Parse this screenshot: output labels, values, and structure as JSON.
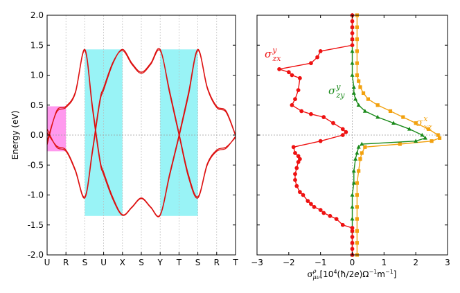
{
  "chart_data": [
    {
      "type": "line",
      "title": "",
      "ylabel": "Energy (eV)",
      "xlabel": "",
      "ylim": [
        -2.0,
        2.0
      ],
      "yticks": [
        "-2.0",
        "-1.5",
        "-1.0",
        "-0.5",
        "0.0",
        "0.5",
        "1.0",
        "1.5",
        "2.0"
      ],
      "kpath": [
        "U",
        "R",
        "S",
        "U",
        "X",
        "S",
        "Y",
        "T",
        "S",
        "R",
        "T"
      ],
      "fermi_level": 0.0,
      "line_color": "#dd1111",
      "highlight_colors": {
        "magenta": "#ff99ee",
        "cyan": "#99f3f6"
      },
      "highlights": [
        {
          "color": "magenta",
          "k_from": 0,
          "k_to": 1,
          "e_from": -0.27,
          "e_to": 0.48
        },
        {
          "color": "cyan",
          "k_from": 2,
          "k_to": 4,
          "e_from": -1.35,
          "e_to": 1.43
        },
        {
          "color": "cyan",
          "k_from": 6,
          "k_to": 8,
          "e_from": -1.35,
          "e_to": 1.43
        }
      ],
      "bands": [
        {
          "name": "upper-1",
          "points": [
            [
              0,
              -0.16
            ],
            [
              0.5,
              0.4
            ],
            [
              1,
              0.48
            ],
            [
              1.5,
              0.72
            ],
            [
              2,
              1.43
            ],
            [
              2.4,
              0.5
            ],
            [
              2.8,
              -0.4
            ],
            [
              3,
              -0.62
            ],
            [
              3.5,
              -1.05
            ],
            [
              4,
              -1.33
            ],
            [
              4.5,
              -1.2
            ],
            [
              5,
              -1.05
            ],
            [
              5.5,
              -1.2
            ],
            [
              6,
              -1.33
            ],
            [
              6.5,
              -0.65
            ],
            [
              7,
              0.0
            ],
            [
              7.5,
              0.7
            ],
            [
              8,
              1.43
            ],
            [
              8.5,
              0.8
            ],
            [
              9,
              0.48
            ],
            [
              9.5,
              0.4
            ],
            [
              10,
              0.0
            ]
          ]
        },
        {
          "name": "upper-2",
          "points": [
            [
              0,
              -0.1
            ],
            [
              0.5,
              0.38
            ],
            [
              1,
              0.46
            ],
            [
              1.5,
              0.7
            ],
            [
              2,
              1.41
            ],
            [
              2.4,
              0.45
            ],
            [
              2.8,
              -0.44
            ],
            [
              3,
              -0.66
            ],
            [
              3.5,
              -1.08
            ],
            [
              4,
              -1.34
            ],
            [
              4.5,
              -1.21
            ],
            [
              5,
              -1.06
            ],
            [
              5.5,
              -1.21
            ],
            [
              6,
              -1.34
            ],
            [
              6.5,
              -0.68
            ],
            [
              7,
              -0.03
            ],
            [
              7.5,
              0.66
            ],
            [
              8,
              1.41
            ],
            [
              8.5,
              0.78
            ],
            [
              9,
              0.46
            ],
            [
              9.5,
              0.38
            ],
            [
              10,
              -0.01
            ]
          ]
        },
        {
          "name": "lower-1",
          "points": [
            [
              0,
              0.1
            ],
            [
              0.5,
              -0.2
            ],
            [
              1,
              -0.27
            ],
            [
              1.5,
              -0.6
            ],
            [
              2,
              -1.05
            ],
            [
              2.4,
              -0.3
            ],
            [
              2.8,
              0.55
            ],
            [
              3,
              0.75
            ],
            [
              3.5,
              1.2
            ],
            [
              4,
              1.43
            ],
            [
              4.5,
              1.2
            ],
            [
              5,
              1.05
            ],
            [
              5.5,
              1.2
            ],
            [
              6,
              1.43
            ],
            [
              6.5,
              0.7
            ],
            [
              7,
              0.0
            ],
            [
              7.5,
              -0.7
            ],
            [
              8,
              -1.05
            ],
            [
              8.5,
              -0.5
            ],
            [
              9,
              -0.27
            ],
            [
              9.5,
              -0.22
            ],
            [
              10,
              -0.02
            ]
          ]
        },
        {
          "name": "lower-2",
          "points": [
            [
              0,
              0.04
            ],
            [
              0.5,
              -0.18
            ],
            [
              1,
              -0.25
            ],
            [
              1.5,
              -0.58
            ],
            [
              2,
              -1.03
            ],
            [
              2.4,
              -0.26
            ],
            [
              2.8,
              0.59
            ],
            [
              3,
              0.79
            ],
            [
              3.5,
              1.22
            ],
            [
              4,
              1.41
            ],
            [
              4.5,
              1.18
            ],
            [
              5,
              1.03
            ],
            [
              5.5,
              1.18
            ],
            [
              6,
              1.41
            ],
            [
              6.5,
              0.74
            ],
            [
              7,
              0.03
            ],
            [
              7.5,
              -0.66
            ],
            [
              8,
              -1.03
            ],
            [
              8.5,
              -0.48
            ],
            [
              9,
              -0.25
            ],
            [
              9.5,
              -0.2
            ],
            [
              10,
              -0.04
            ]
          ]
        }
      ]
    },
    {
      "type": "line",
      "title": "",
      "xlabel": "σ^ρ_μν [10^4(ħ/2e)Ω^-1m^-1]",
      "xlabel_parts": {
        "sigma": "σ",
        "sup": "ρ",
        "sub": "μν",
        "open": "[10",
        "exp4": "4",
        "mid": "(ħ/2",
        "e": "e",
        "close": ")Ω",
        "exp1": "−1",
        "m": "m",
        "exp2": "−1",
        "end": "]"
      },
      "xlim": [
        -3,
        3
      ],
      "ylim": [
        -2.0,
        2.0
      ],
      "xticks": [
        -3,
        -2,
        -1,
        0,
        1,
        2,
        3
      ],
      "xtick_labels": [
        "−3",
        "−2",
        "−1",
        "0",
        "1",
        "2",
        "3"
      ],
      "reference_lines": {
        "x": 0,
        "y": 0
      },
      "series": [
        {
          "name": "σ^y_zx",
          "label": {
            "base": "σ",
            "sup": "y",
            "sub": "zx"
          },
          "color": "#ee1111",
          "marker": "circle",
          "points": [
            [
              0.0,
              -2.0
            ],
            [
              0.0,
              -1.9
            ],
            [
              0.0,
              -1.8
            ],
            [
              0.0,
              -1.7
            ],
            [
              0.0,
              -1.6
            ],
            [
              0.0,
              -1.55
            ],
            [
              -0.3,
              -1.5
            ],
            [
              -0.5,
              -1.4
            ],
            [
              -0.7,
              -1.35
            ],
            [
              -0.9,
              -1.3
            ],
            [
              -1.0,
              -1.25
            ],
            [
              -1.2,
              -1.2
            ],
            [
              -1.3,
              -1.15
            ],
            [
              -1.4,
              -1.1
            ],
            [
              -1.55,
              -1.0
            ],
            [
              -1.65,
              -0.95
            ],
            [
              -1.75,
              -0.85
            ],
            [
              -1.8,
              -0.75
            ],
            [
              -1.8,
              -0.65
            ],
            [
              -1.75,
              -0.55
            ],
            [
              -1.7,
              -0.45
            ],
            [
              -1.65,
              -0.4
            ],
            [
              -1.7,
              -0.35
            ],
            [
              -1.8,
              -0.3
            ],
            [
              -1.85,
              -0.2
            ],
            [
              -1.0,
              -0.1
            ],
            [
              -0.3,
              0.0
            ],
            [
              -0.2,
              0.05
            ],
            [
              -0.3,
              0.1
            ],
            [
              -0.6,
              0.2
            ],
            [
              -0.9,
              0.3
            ],
            [
              -1.3,
              0.35
            ],
            [
              -1.6,
              0.4
            ],
            [
              -1.9,
              0.5
            ],
            [
              -1.8,
              0.6
            ],
            [
              -1.7,
              0.75
            ],
            [
              -1.65,
              0.95
            ],
            [
              -1.9,
              1.0
            ],
            [
              -2.0,
              1.05
            ],
            [
              -2.3,
              1.1
            ],
            [
              -1.3,
              1.2
            ],
            [
              -1.1,
              1.3
            ],
            [
              -1.0,
              1.4
            ],
            [
              0.0,
              1.5
            ],
            [
              0.0,
              1.6
            ],
            [
              0.0,
              1.7
            ],
            [
              0.0,
              1.8
            ],
            [
              0.0,
              1.9
            ],
            [
              0.0,
              2.0
            ]
          ]
        },
        {
          "name": "σ^y_zy",
          "label": {
            "base": "σ",
            "sup": "y",
            "sub": "zy"
          },
          "color": "#1a8a1a",
          "marker": "triangle",
          "points": [
            [
              0.0,
              -2.0
            ],
            [
              0.0,
              -1.8
            ],
            [
              0.0,
              -1.6
            ],
            [
              0.0,
              -1.4
            ],
            [
              0.0,
              -1.2
            ],
            [
              0.0,
              -1.0
            ],
            [
              0.05,
              -0.8
            ],
            [
              0.05,
              -0.6
            ],
            [
              0.1,
              -0.4
            ],
            [
              0.15,
              -0.3
            ],
            [
              0.2,
              -0.2
            ],
            [
              0.3,
              -0.15
            ],
            [
              2.0,
              -0.1
            ],
            [
              2.3,
              -0.05
            ],
            [
              2.2,
              0.0
            ],
            [
              1.8,
              0.1
            ],
            [
              1.3,
              0.2
            ],
            [
              0.8,
              0.3
            ],
            [
              0.4,
              0.4
            ],
            [
              0.2,
              0.5
            ],
            [
              0.1,
              0.6
            ],
            [
              0.05,
              0.7
            ],
            [
              0.05,
              0.8
            ],
            [
              0.0,
              1.0
            ],
            [
              0.0,
              1.2
            ],
            [
              0.0,
              1.4
            ],
            [
              0.0,
              1.6
            ],
            [
              0.0,
              1.8
            ],
            [
              0.0,
              2.0
            ]
          ]
        },
        {
          "name": "σ^x_xz",
          "label": {
            "base": "σ",
            "sup": "x",
            "sub": "xz"
          },
          "color": "#f2a10e",
          "marker": "square",
          "points": [
            [
              0.15,
              -2.0
            ],
            [
              0.15,
              -1.8
            ],
            [
              0.15,
              -1.6
            ],
            [
              0.15,
              -1.4
            ],
            [
              0.15,
              -1.2
            ],
            [
              0.15,
              -1.0
            ],
            [
              0.15,
              -0.8
            ],
            [
              0.2,
              -0.6
            ],
            [
              0.25,
              -0.4
            ],
            [
              0.3,
              -0.3
            ],
            [
              0.4,
              -0.2
            ],
            [
              1.5,
              -0.15
            ],
            [
              2.5,
              -0.1
            ],
            [
              2.75,
              -0.05
            ],
            [
              2.7,
              0.0
            ],
            [
              2.4,
              0.1
            ],
            [
              2.0,
              0.2
            ],
            [
              1.6,
              0.3
            ],
            [
              1.2,
              0.4
            ],
            [
              0.8,
              0.5
            ],
            [
              0.5,
              0.6
            ],
            [
              0.35,
              0.7
            ],
            [
              0.25,
              0.8
            ],
            [
              0.2,
              0.9
            ],
            [
              0.15,
              1.0
            ],
            [
              0.15,
              1.2
            ],
            [
              0.15,
              1.4
            ],
            [
              0.15,
              1.6
            ],
            [
              0.15,
              1.8
            ],
            [
              0.15,
              2.0
            ]
          ]
        }
      ]
    }
  ]
}
